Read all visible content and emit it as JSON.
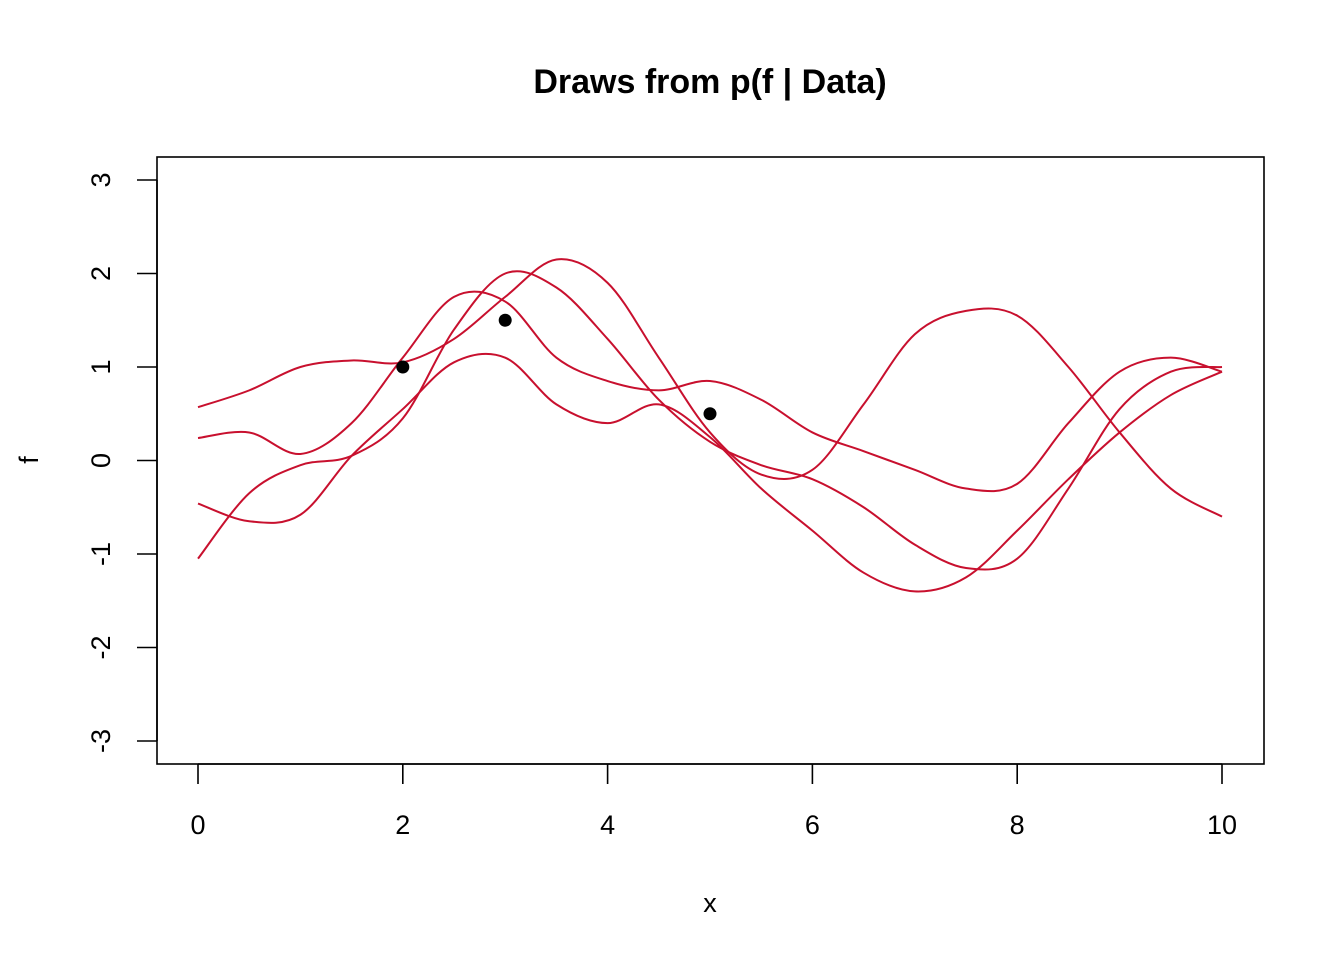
{
  "chart_data": {
    "type": "line",
    "title": "Draws from p(f | Data)",
    "xlabel": "x",
    "ylabel": "f",
    "xlim": [
      0,
      10
    ],
    "ylim": [
      -3,
      3
    ],
    "xticks": [
      0,
      2,
      4,
      6,
      8,
      10
    ],
    "yticks": [
      -3,
      -2,
      -1,
      0,
      1,
      2,
      3
    ],
    "grid": false,
    "line_color": "#C8102E",
    "point_color": "#000000",
    "x": [
      0,
      0.5,
      1,
      1.5,
      2,
      2.5,
      3,
      3.5,
      4,
      4.5,
      5,
      5.5,
      6,
      6.5,
      7,
      7.5,
      8,
      8.5,
      9,
      9.5,
      10
    ],
    "series": [
      {
        "values": [
          0.57,
          0.75,
          1.0,
          1.07,
          1.05,
          1.3,
          1.75,
          2.15,
          1.9,
          1.1,
          0.3,
          -0.15,
          -0.1,
          0.6,
          1.35,
          1.6,
          1.55,
          1.0,
          0.3,
          -0.3,
          -0.6
        ]
      },
      {
        "values": [
          0.24,
          0.3,
          0.07,
          0.4,
          1.1,
          1.75,
          1.7,
          1.1,
          0.85,
          0.75,
          0.85,
          0.65,
          0.3,
          0.1,
          -0.1,
          -0.3,
          -0.25,
          0.4,
          0.95,
          1.1,
          0.95
        ]
      },
      {
        "values": [
          -0.46,
          -0.65,
          -0.58,
          0.05,
          0.55,
          1.05,
          1.1,
          0.6,
          0.4,
          0.6,
          0.25,
          -0.3,
          -0.75,
          -1.2,
          -1.4,
          -1.25,
          -0.75,
          -0.2,
          0.3,
          0.7,
          0.95
        ]
      },
      {
        "values": [
          -1.05,
          -0.35,
          -0.05,
          0.05,
          0.45,
          1.4,
          2.0,
          1.85,
          1.3,
          0.65,
          0.2,
          -0.05,
          -0.2,
          -0.5,
          -0.9,
          -1.15,
          -1.05,
          -0.3,
          0.55,
          0.95,
          1.0
        ]
      }
    ],
    "points": [
      {
        "x": 2,
        "y": 1.0
      },
      {
        "x": 3,
        "y": 1.5
      },
      {
        "x": 5,
        "y": 0.5
      }
    ]
  }
}
